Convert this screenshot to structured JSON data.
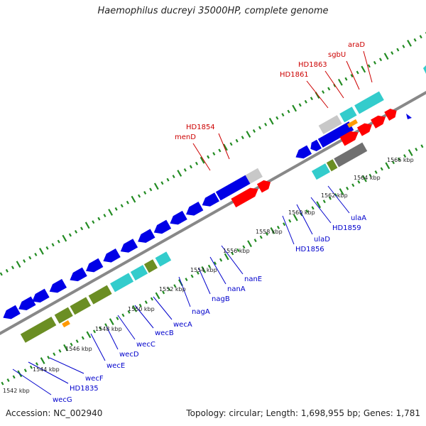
{
  "title": "Haemophilus ducreyi 35000HP, complete genome",
  "accession": "Accession: NC_002940",
  "summary": "Topology: circular; Length: 1,698,955 bp; Genes: 1,781",
  "colors": {
    "blue": "#0000e6",
    "red": "#ff0000",
    "cyan": "#33cccc",
    "olive": "#6b8e23",
    "gray": "#c8c8c8",
    "darkgray": "#707070",
    "orange": "#ff9900",
    "tick": "#228b22",
    "backbone": "#888888",
    "label_blue": "#0000cc",
    "label_red": "#cc0000"
  },
  "ticks": [
    "1542 kbp",
    "1544 kbp",
    "1546 kbp",
    "1548 kbp",
    "1550 kbp",
    "1552 kbp",
    "1554 kbp",
    "1556 kbp",
    "1558 kbp",
    "1560 kbp",
    "1562 kbp",
    "1564 kbp",
    "1566 kbp"
  ],
  "labels_top": [
    "menD",
    "HD1854",
    "HD1861",
    "HD1863",
    "sgbU",
    "araD"
  ],
  "labels_bottom": [
    "wecG",
    "HD1835",
    "wecF",
    "wecE",
    "wecD",
    "wecC",
    "wecB",
    "wecA",
    "nagA",
    "nagB",
    "nanA",
    "nanE",
    "HD1856",
    "ulaD",
    "HD1859",
    "ulaA"
  ]
}
